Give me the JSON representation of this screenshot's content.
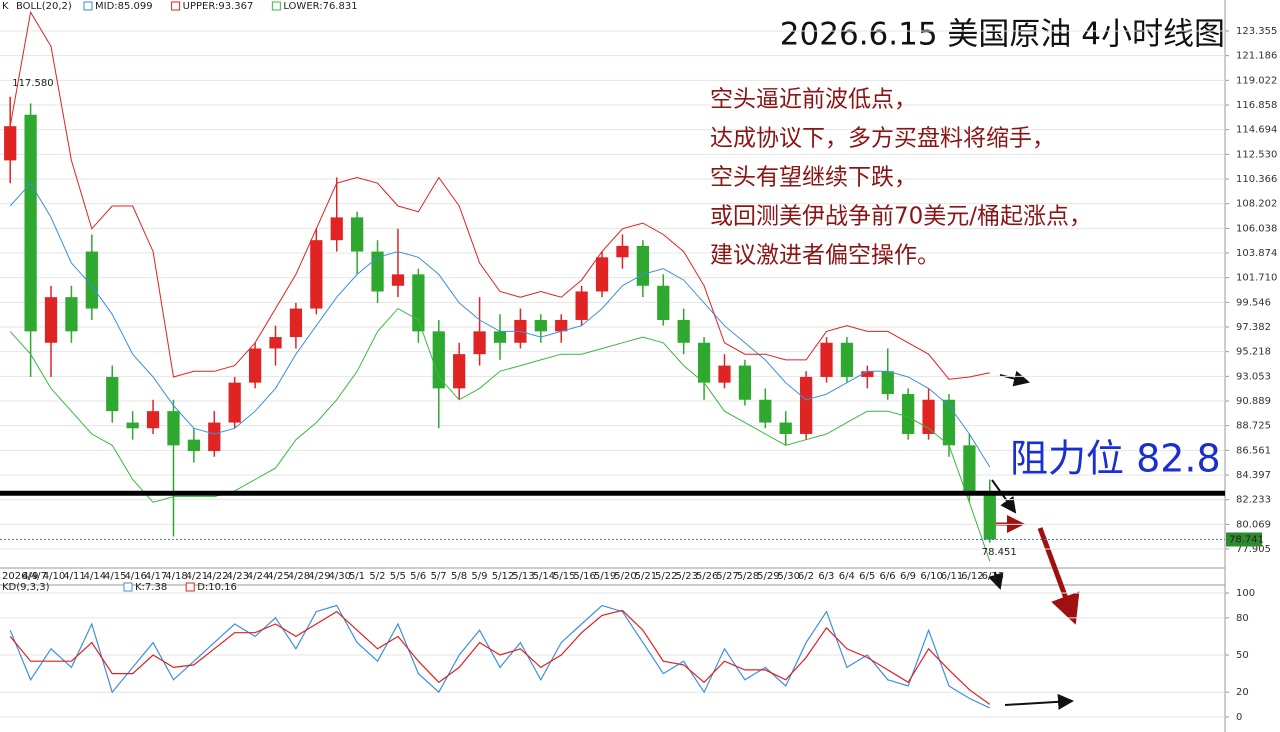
{
  "chart_data": [
    {
      "type": "candlestick",
      "label": "K",
      "indicator": "BOLL(20,2)",
      "title": "2026.6.15 美国原油 4小时线图",
      "notes": [
        "空头逼近前波低点，",
        "达成协议下，多方买盘料将缩手，",
        "空头有望继续下跌，",
        "或回测美伊战争前70美元/桶起涨点，",
        "建议激进者偏空操作。"
      ],
      "categories": [
        "2026/4/7",
        "4/9",
        "4/10",
        "4/11",
        "4/14",
        "4/15",
        "4/16",
        "4/17",
        "4/18",
        "4/21",
        "4/22",
        "4/23",
        "4/24",
        "4/25",
        "4/28",
        "4/29",
        "4/30",
        "5/1",
        "5/2",
        "5/5",
        "5/6",
        "5/7",
        "5/8",
        "5/9",
        "5/12",
        "5/13",
        "5/14",
        "5/15",
        "5/16",
        "5/19",
        "5/20",
        "5/21",
        "5/22",
        "5/23",
        "5/26",
        "5/27",
        "5/28",
        "5/29",
        "5/30",
        "6/2",
        "6/3",
        "6/4",
        "6/5",
        "6/6",
        "6/9",
        "6/10",
        "6/11",
        "6/12",
        "6/13"
      ],
      "open": [
        112,
        116,
        96,
        100,
        104,
        93,
        89,
        88.5,
        90,
        87.5,
        86.5,
        89,
        92.5,
        95.5,
        96.5,
        99,
        105,
        107,
        104,
        101,
        102,
        97,
        92,
        95,
        97,
        96,
        98,
        97,
        98,
        100.5,
        103.5,
        104.5,
        101,
        98,
        96,
        92.5,
        94,
        91,
        89,
        88,
        93,
        96,
        93,
        93.5,
        91.5,
        88,
        91,
        87,
        83
      ],
      "high": [
        117.58,
        117,
        101,
        101,
        105.5,
        94,
        90,
        91,
        91,
        88.5,
        90,
        93,
        96,
        97.5,
        99.5,
        106,
        110.5,
        107.5,
        105,
        106,
        102.5,
        98,
        96,
        100,
        98.5,
        99,
        98.5,
        98.5,
        101,
        104,
        105.5,
        105,
        102,
        99,
        96.5,
        95,
        94.5,
        92,
        90,
        93.5,
        96.5,
        96.5,
        94,
        95.5,
        92,
        92,
        91.5,
        88,
        84
      ],
      "low": [
        110,
        93,
        93,
        96,
        98,
        89,
        87.5,
        88,
        79,
        85.5,
        86,
        88.5,
        92,
        94,
        95.5,
        98.5,
        104,
        102,
        99.5,
        100,
        96,
        88.5,
        91,
        94,
        94.5,
        95.5,
        96,
        96,
        97.5,
        100,
        102.5,
        100,
        97.5,
        95,
        91,
        92,
        90.5,
        88.5,
        87,
        87.5,
        92.5,
        92.5,
        92,
        91,
        87.5,
        87.5,
        86,
        82,
        78.451
      ],
      "close": [
        115,
        97,
        100,
        97,
        99,
        90,
        88.5,
        90,
        87,
        86.5,
        89,
        92.5,
        95.5,
        96.5,
        99,
        105,
        107,
        104,
        100.5,
        102,
        97,
        92,
        95,
        97,
        96,
        98,
        97,
        98,
        100.5,
        103.5,
        104.5,
        101,
        98,
        96,
        92.5,
        94,
        91,
        89,
        88,
        93,
        96,
        93,
        93.5,
        91.5,
        88,
        91,
        87,
        83,
        78.741
      ],
      "up_color": "#e02424",
      "down_color": "#2ea82e",
      "series": [
        {
          "name": "MID:85.099",
          "color": "#3d8fe0",
          "values": [
            108,
            110,
            107,
            103,
            101,
            98.5,
            95,
            93,
            90.5,
            88.5,
            88,
            88.5,
            90,
            92,
            95,
            97.5,
            100,
            102,
            103.5,
            104,
            103.5,
            102,
            99.5,
            98,
            97,
            97,
            96.5,
            97,
            97.5,
            99,
            101,
            102,
            102.5,
            101.5,
            99.5,
            97.5,
            96,
            94.5,
            92.5,
            91,
            91.5,
            92.5,
            93.5,
            93.5,
            93,
            92,
            90.5,
            88,
            85.099
          ]
        },
        {
          "name": "UPPER:93.367",
          "color": "#e02020",
          "values": [
            115,
            125,
            122,
            112,
            106,
            108,
            108,
            104,
            93,
            93.5,
            93.5,
            94,
            96,
            99,
            102,
            106,
            110,
            110.5,
            110,
            108,
            107.5,
            110.5,
            108,
            103,
            100.5,
            100,
            100.5,
            100,
            101.5,
            104,
            106,
            106.5,
            105.5,
            104,
            101,
            96,
            95,
            95,
            94.5,
            94.5,
            97,
            97.5,
            97,
            97,
            96,
            95,
            92.8,
            93,
            93.367
          ]
        },
        {
          "name": "LOWER:76.831",
          "color": "#3cb83c",
          "values": [
            97,
            95,
            92,
            90,
            88,
            87,
            84,
            82,
            82.5,
            82.5,
            82.5,
            83,
            84,
            85,
            87.5,
            89,
            91,
            93.5,
            97,
            99,
            98,
            93,
            91,
            92,
            93.5,
            94,
            94.5,
            95,
            95,
            95.5,
            96,
            96.5,
            96,
            94,
            92.5,
            90,
            89,
            88,
            87,
            87.5,
            88,
            89,
            90,
            90,
            89.5,
            88.5,
            87,
            82,
            76.831
          ]
        }
      ],
      "high_label": "117.580",
      "low_label": "78.451",
      "last_price": 78.741,
      "resistance": {
        "value": 82.8,
        "label": "阻力位 82.8"
      },
      "ylim": [
        76.24,
        126.07
      ],
      "yticks": [
        123.355,
        121.186,
        119.022,
        116.858,
        114.694,
        {
          "value": 112.53,
          "label": "112.530"
        },
        110.366,
        108.202,
        106.038,
        103.874,
        {
          "value": 101.71,
          "label": "101.710"
        },
        99.546,
        97.382,
        95.218,
        93.053,
        90.889,
        88.725,
        86.561,
        84.397,
        82.233,
        80.069,
        77.905
      ],
      "grid": true
    },
    {
      "type": "line",
      "indicator": "KD(9,3,3)",
      "series": [
        {
          "name": "K:7.38",
          "color": "#3d8fe0",
          "values": [
            70,
            30,
            55,
            40,
            75,
            20,
            40,
            60,
            30,
            45,
            60,
            75,
            65,
            80,
            55,
            85,
            90,
            60,
            45,
            75,
            35,
            20,
            50,
            70,
            40,
            60,
            30,
            60,
            75,
            90,
            85,
            60,
            35,
            45,
            20,
            55,
            30,
            40,
            25,
            60,
            85,
            40,
            50,
            30,
            25,
            70,
            25,
            15,
            7.38
          ]
        },
        {
          "name": "D:10.16",
          "color": "#e02020",
          "values": [
            65,
            45,
            45,
            45,
            60,
            35,
            35,
            50,
            40,
            42,
            55,
            68,
            68,
            75,
            65,
            75,
            85,
            70,
            55,
            65,
            45,
            28,
            40,
            60,
            50,
            55,
            40,
            50,
            68,
            82,
            86,
            70,
            45,
            42,
            28,
            45,
            38,
            38,
            30,
            48,
            72,
            55,
            48,
            38,
            28,
            55,
            38,
            22,
            10.16
          ]
        }
      ],
      "ylim": [
        -12.1,
        106.5
      ],
      "yticks": [
        100,
        80,
        50,
        20,
        0
      ],
      "grid": true
    }
  ]
}
